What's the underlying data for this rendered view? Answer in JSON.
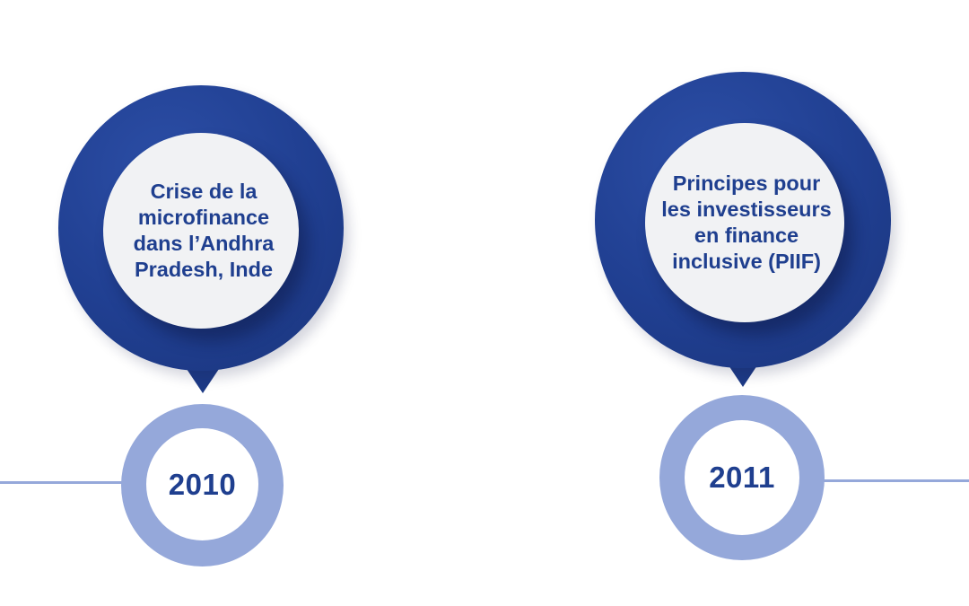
{
  "timeline": {
    "events": [
      {
        "year": "2010",
        "description": "Crise de la\nmicrofinance\ndans l’Andhra\nPradesh, Inde"
      },
      {
        "year": "2011",
        "description": "Principes pour\nles investisseurs\nen finance\ninclusive (PIIF)"
      }
    ]
  },
  "colors": {
    "navy": "#203f91",
    "light_blue": "#95a8da",
    "text": "#1f3f8f",
    "bubble_fill": "#f1f2f4"
  }
}
